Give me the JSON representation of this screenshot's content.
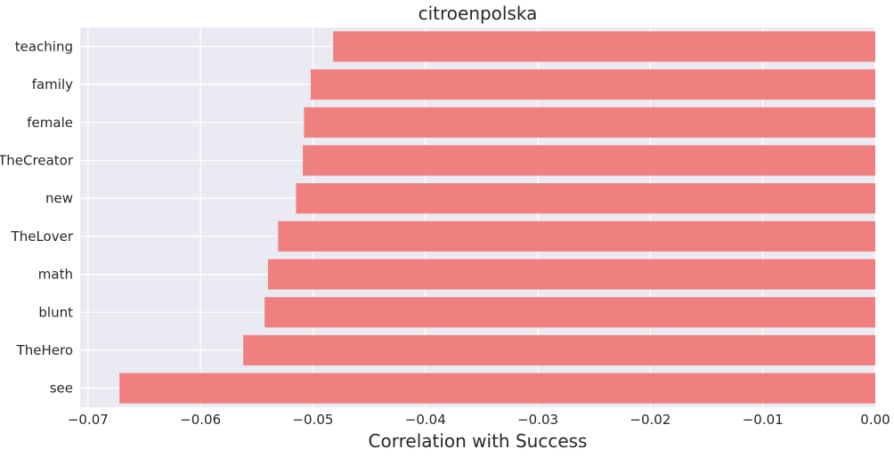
{
  "chart_data": {
    "type": "bar",
    "orientation": "horizontal",
    "title": "citroenpolska",
    "xlabel": "Correlation with Success",
    "ylabel": "",
    "categories": [
      "teaching",
      "family",
      "female",
      "TheCreator",
      "new",
      "TheLover",
      "math",
      "blunt",
      "TheHero",
      "see"
    ],
    "values": [
      -0.0482,
      -0.0502,
      -0.0508,
      -0.0509,
      -0.0515,
      -0.0531,
      -0.054,
      -0.0543,
      -0.0562,
      -0.0672
    ],
    "xlim": [
      -0.0707,
      0.0
    ],
    "xticks": [
      -0.07,
      -0.06,
      -0.05,
      -0.04,
      -0.03,
      -0.02,
      -0.01,
      0.0
    ],
    "xtick_labels": [
      "−0.07",
      "−0.06",
      "−0.05",
      "−0.04",
      "−0.03",
      "−0.02",
      "−0.01",
      "0.00"
    ],
    "grid": true,
    "colors": {
      "bar": "#f08080",
      "plot_background": "#eaeaf2",
      "grid": "#ffffff",
      "text": "#262626"
    }
  }
}
